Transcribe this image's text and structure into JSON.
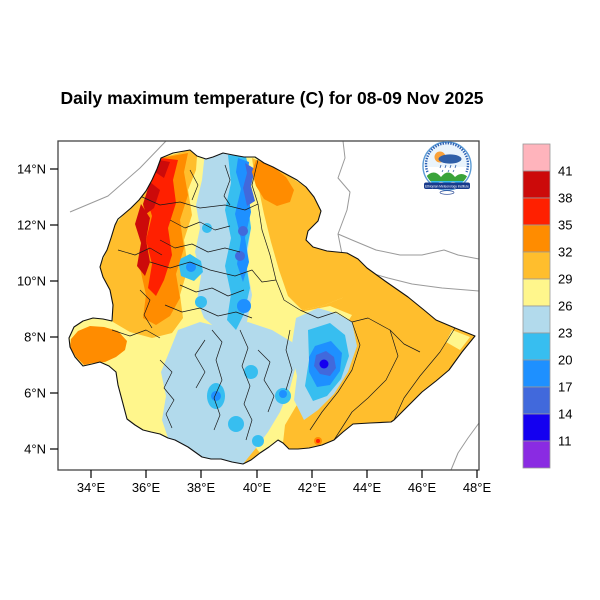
{
  "title": "Daily maximum temperature (C) for 08-09 Nov 2025",
  "axes": {
    "lat_tick_labels": [
      "14°N",
      "12°N",
      "10°N",
      "8°N",
      "6°N",
      "4°N"
    ],
    "lon_tick_labels": [
      "34°E",
      "36°E",
      "38°E",
      "40°E",
      "42°E",
      "44°E",
      "46°E",
      "48°E"
    ]
  },
  "colorbar": {
    "tick_labels": [
      "41",
      "38",
      "35",
      "32",
      "29",
      "26",
      "23",
      "20",
      "17",
      "14",
      "11"
    ],
    "colors_top_to_bottom": [
      "#FFB4BC",
      "#CC0A0A",
      "#FF2000",
      "#FF8C00",
      "#FFBE2D",
      "#FFF68C",
      "#B2DAEC",
      "#37BEF0",
      "#1E90FF",
      "#4169DC",
      "#1400F0",
      "#8A2BE2"
    ]
  },
  "palette": {
    "pink": "#FFB4BC",
    "darkred": "#CC0A0A",
    "red": "#FF2000",
    "orange": "#FF8C00",
    "amber": "#FFBE2D",
    "lightyellow": "#FFF68C",
    "paleblue": "#B2DAEC",
    "cyan": "#37BEF0",
    "blue": "#1E90FF",
    "royal": "#4169DC",
    "deepblue": "#1400F0",
    "purple": "#8A2BE2",
    "boundary": "#1a1a1a",
    "neighbor": "#9a9a9a"
  },
  "logo": {
    "institution": "Ethiopian Meteorology Institute"
  }
}
